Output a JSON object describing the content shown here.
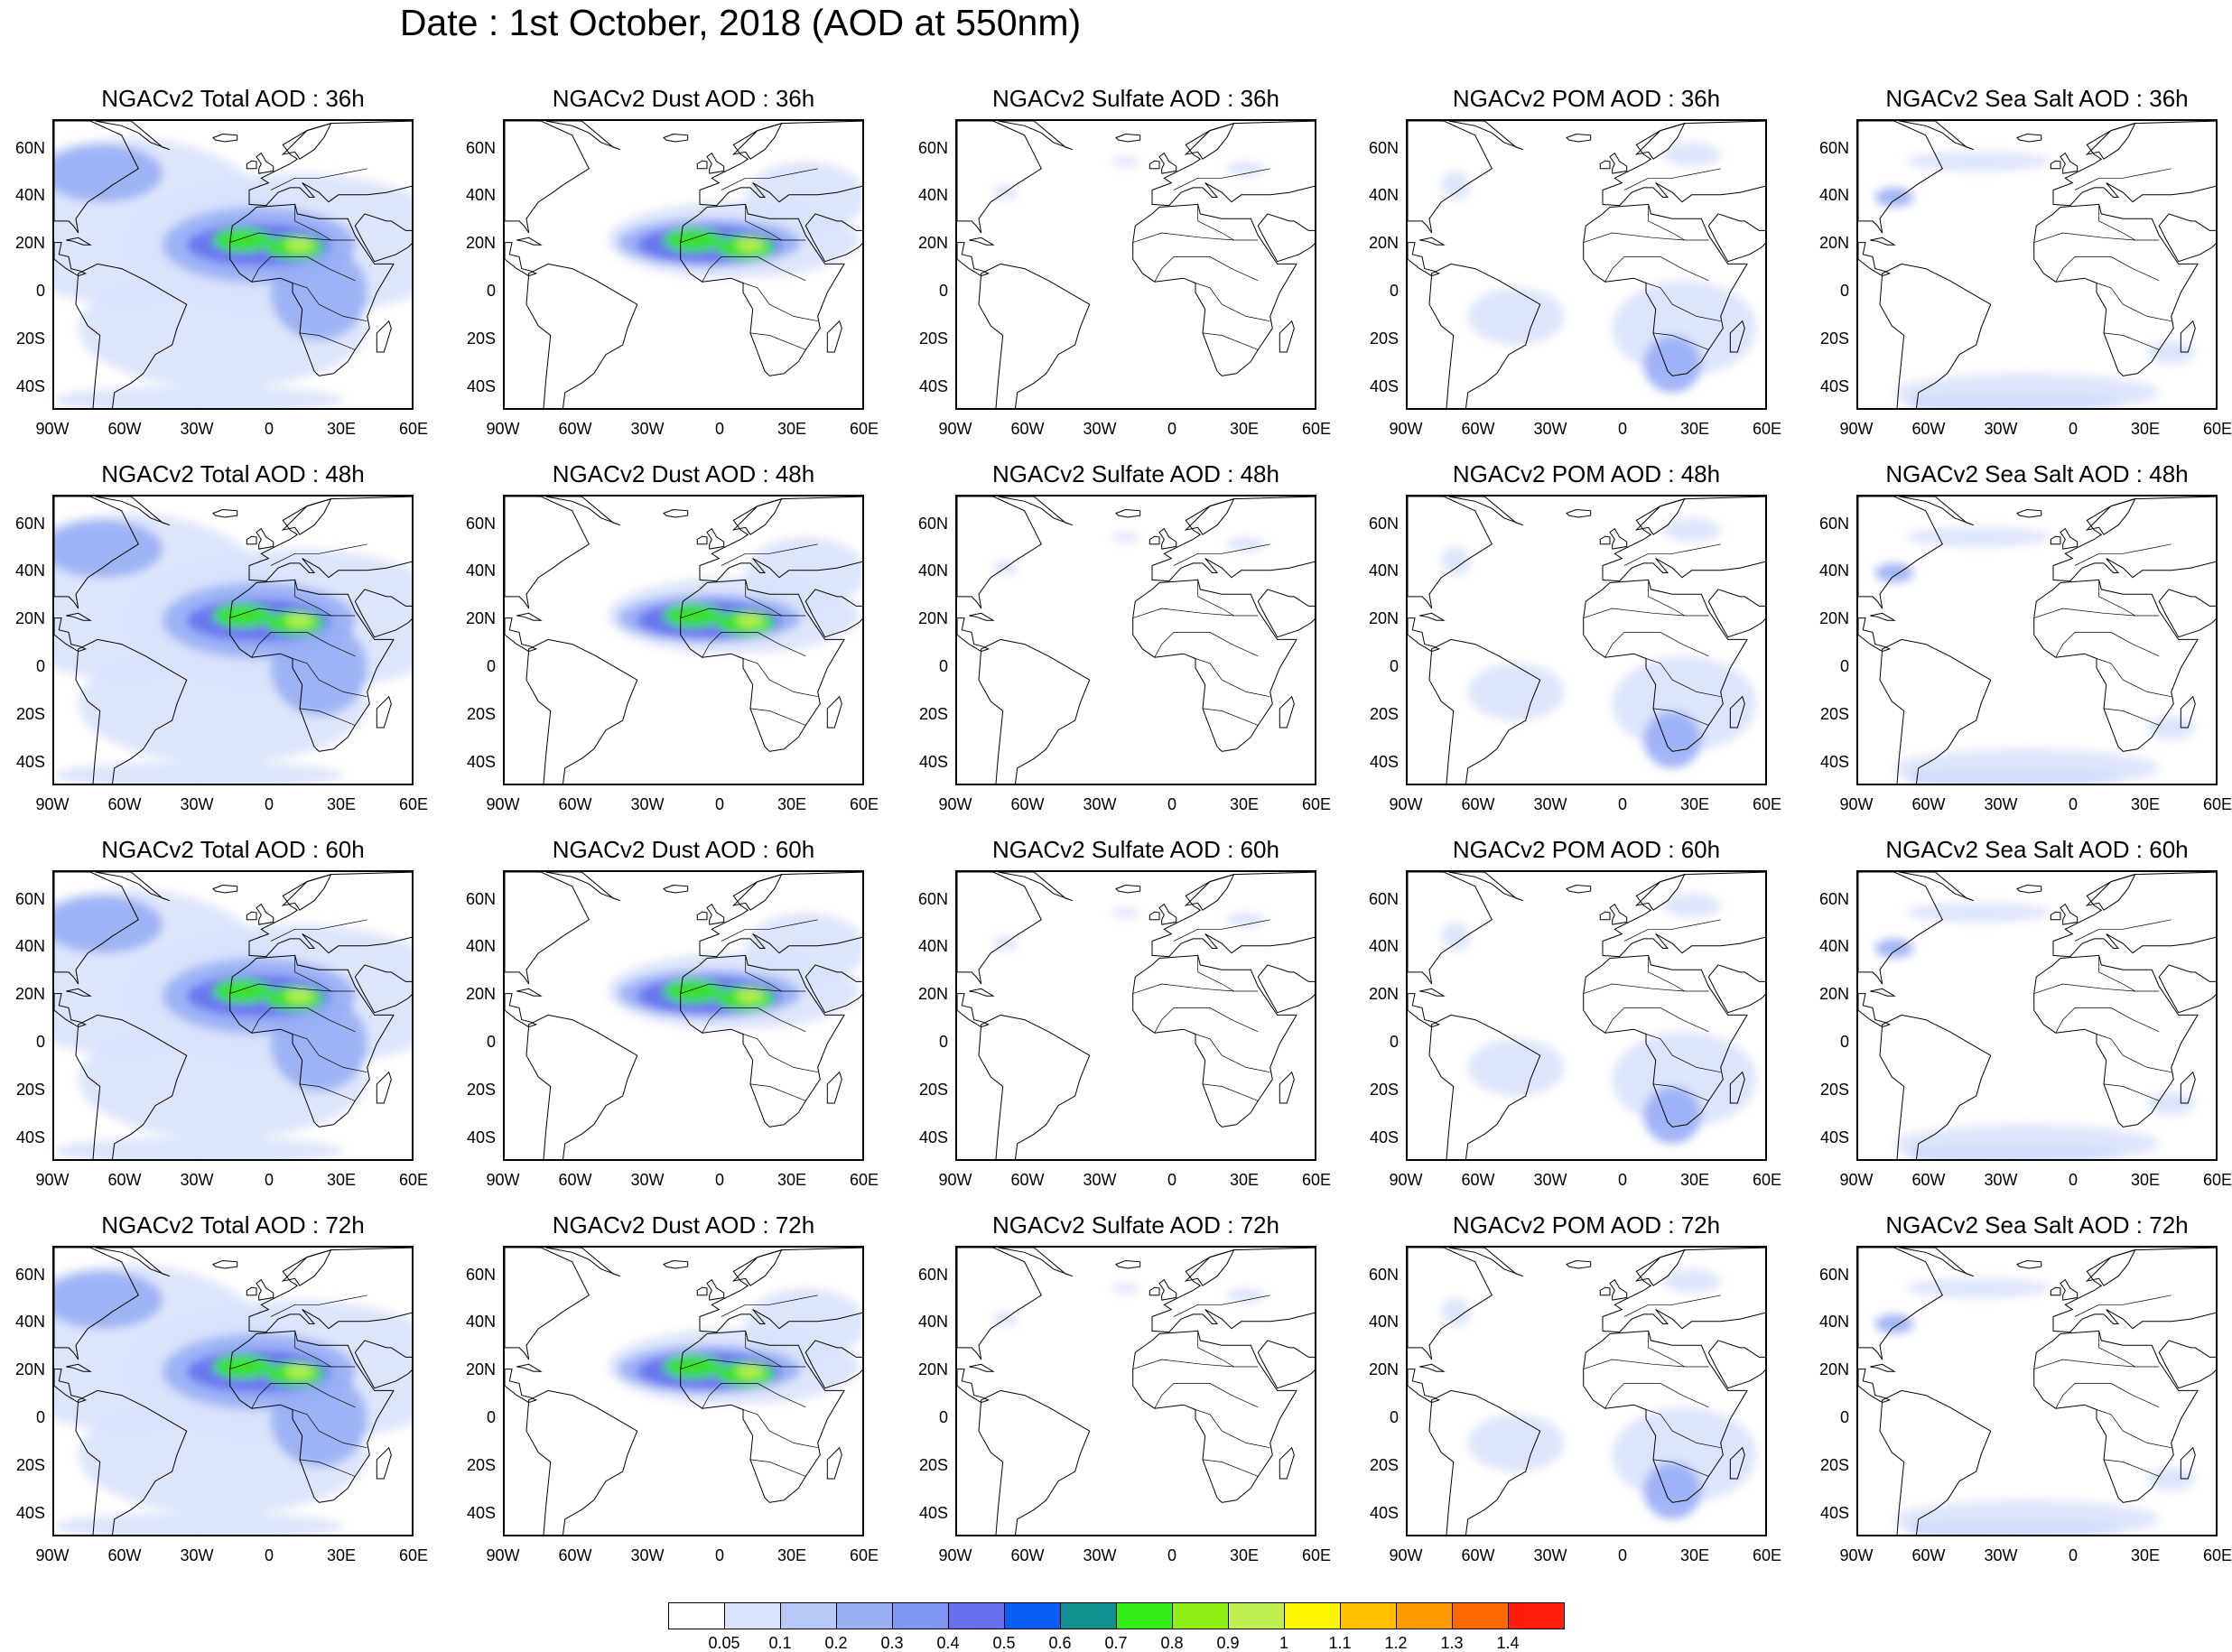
{
  "figure_title": "Date : 1st October, 2018 (AOD at 550nm)",
  "lat_ticks": [
    "60N",
    "40N",
    "20N",
    "0",
    "20S",
    "40S"
  ],
  "lon_ticks": [
    "90W",
    "60W",
    "30W",
    "0",
    "30E",
    "60E"
  ],
  "panels": [
    {
      "title": "NGACv2 Total AOD : 36h",
      "field": "total",
      "hour": 36
    },
    {
      "title": "NGACv2 Dust AOD : 36h",
      "field": "dust",
      "hour": 36
    },
    {
      "title": "NGACv2 Sulfate AOD : 36h",
      "field": "sulfate",
      "hour": 36
    },
    {
      "title": "NGACv2 POM AOD : 36h",
      "field": "pom",
      "hour": 36
    },
    {
      "title": "NGACv2 Sea Salt AOD : 36h",
      "field": "seasalt",
      "hour": 36
    },
    {
      "title": "NGACv2 Total AOD : 48h",
      "field": "total",
      "hour": 48
    },
    {
      "title": "NGACv2 Dust AOD : 48h",
      "field": "dust",
      "hour": 48
    },
    {
      "title": "NGACv2 Sulfate AOD : 48h",
      "field": "sulfate",
      "hour": 48
    },
    {
      "title": "NGACv2 POM AOD : 48h",
      "field": "pom",
      "hour": 48
    },
    {
      "title": "NGACv2 Sea Salt AOD : 48h",
      "field": "seasalt",
      "hour": 48
    },
    {
      "title": "NGACv2 Total AOD : 60h",
      "field": "total",
      "hour": 60
    },
    {
      "title": "NGACv2 Dust AOD : 60h",
      "field": "dust",
      "hour": 60
    },
    {
      "title": "NGACv2 Sulfate AOD : 60h",
      "field": "sulfate",
      "hour": 60
    },
    {
      "title": "NGACv2 POM AOD : 60h",
      "field": "pom",
      "hour": 60
    },
    {
      "title": "NGACv2 Sea Salt AOD : 60h",
      "field": "seasalt",
      "hour": 60
    },
    {
      "title": "NGACv2 Total AOD : 72h",
      "field": "total",
      "hour": 72
    },
    {
      "title": "NGACv2 Dust AOD : 72h",
      "field": "dust",
      "hour": 72
    },
    {
      "title": "NGACv2 Sulfate AOD : 72h",
      "field": "sulfate",
      "hour": 72
    },
    {
      "title": "NGACv2 POM AOD : 72h",
      "field": "pom",
      "hour": 72
    },
    {
      "title": "NGACv2 Sea Salt  AOD : 72h",
      "field": "seasalt",
      "hour": 72
    }
  ],
  "colorbar": {
    "labels": [
      "0.05",
      "0.1",
      "0.2",
      "0.3",
      "0.4",
      "0.5",
      "0.6",
      "0.7",
      "0.8",
      "0.9",
      "1",
      "1.1",
      "1.2",
      "1.3",
      "1.4"
    ],
    "colors": [
      "#ffffff",
      "#d8e2fb",
      "#b8c8f8",
      "#98aef5",
      "#8095f2",
      "#6670ee",
      "#0a5ef5",
      "#12908f",
      "#33ee14",
      "#8fee14",
      "#c0f050",
      "#fff700",
      "#ffc000",
      "#ff9a00",
      "#ff6a00",
      "#ff1d0c"
    ]
  },
  "map_colors": {
    "land_outline": "#000000",
    "ocean": "#ffffff",
    "plume_low": "#d8e2fb",
    "plume_mid": "#98aef5",
    "plume_high": "#6670ee",
    "plume_peak": "#33ee14",
    "plume_max": "#c0f050"
  }
}
